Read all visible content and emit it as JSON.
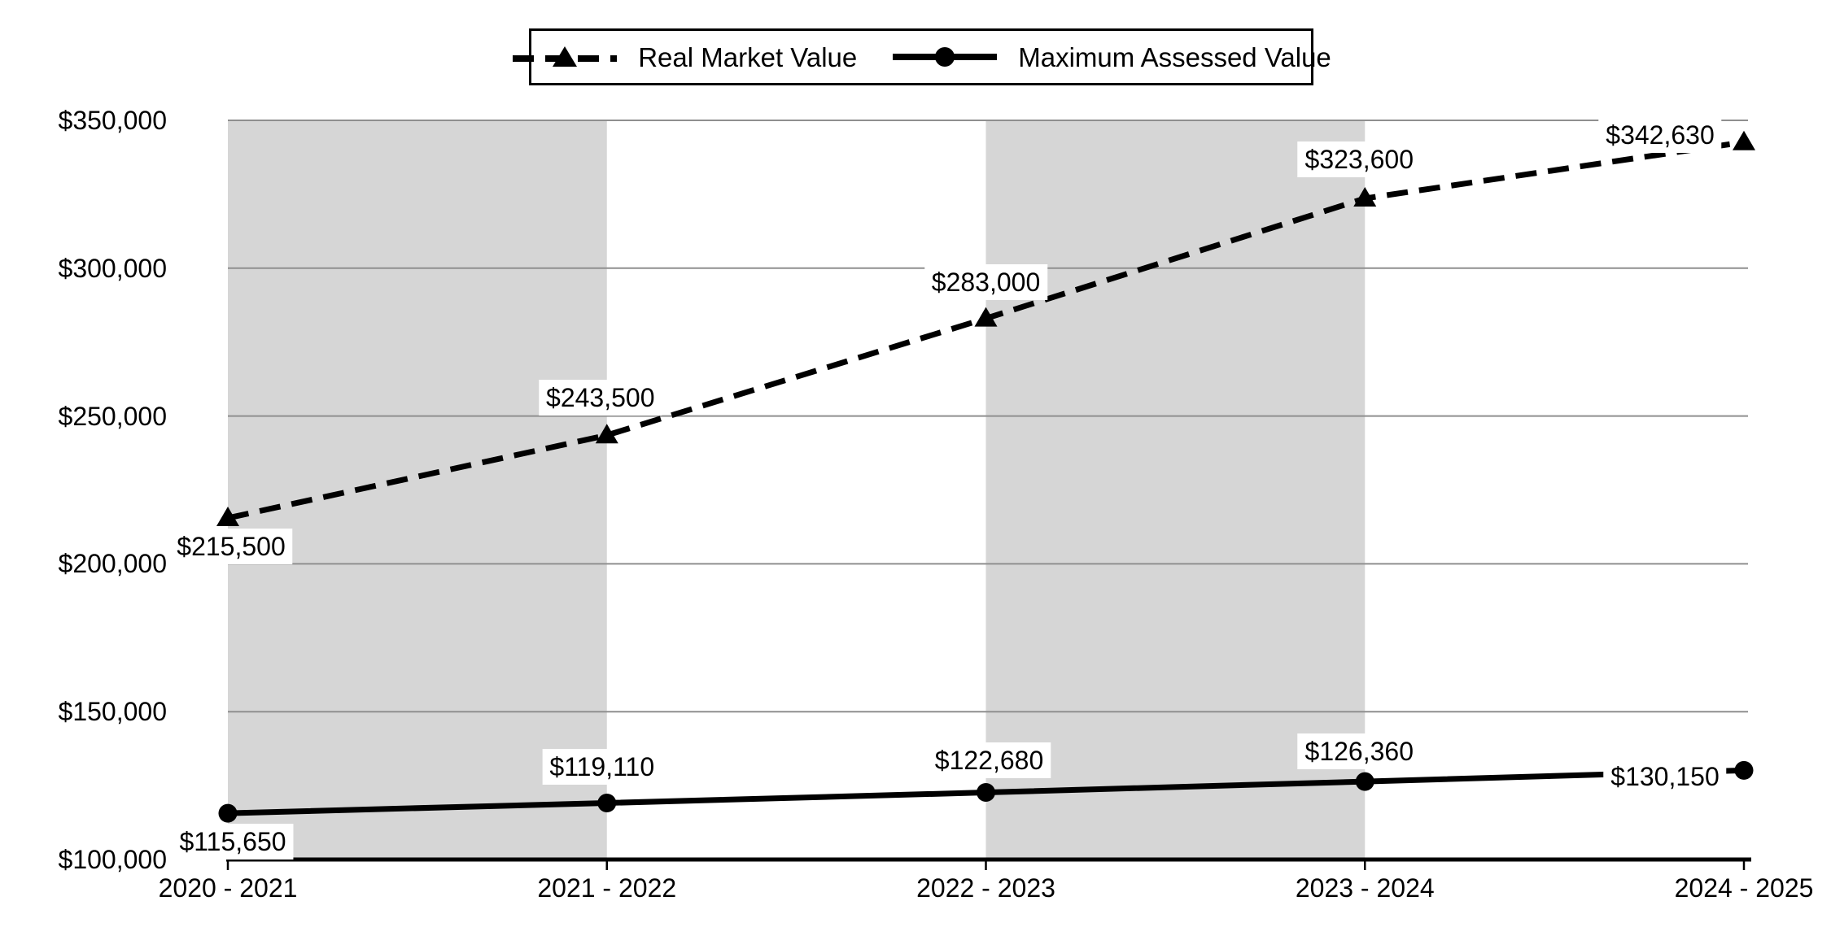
{
  "chart_data": {
    "type": "line",
    "title": "",
    "categories": [
      "2020 - 2021",
      "2021 - 2022",
      "2022 - 2023",
      "2023 - 2024",
      "2024 - 2025"
    ],
    "series": [
      {
        "name": "Real Market Value",
        "values": [
          215500,
          243500,
          283000,
          323600,
          342630
        ],
        "data_labels": [
          "$215,500",
          "$243,500",
          "$283,000",
          "$323,600",
          "$342,630"
        ],
        "line_style": "dashed",
        "marker": "triangle",
        "color": "#000000"
      },
      {
        "name": "Maximum Assessed Value",
        "values": [
          115650,
          119110,
          122680,
          126360,
          130150
        ],
        "data_labels": [
          "$115,650",
          "$119,110",
          "$122,680",
          "$126,360",
          "$130,150"
        ],
        "line_style": "solid",
        "marker": "circle",
        "color": "#000000"
      }
    ],
    "y_axis": {
      "min": 100000,
      "max": 350000,
      "tick_interval": 50000,
      "tick_values": [
        100000,
        150000,
        200000,
        250000,
        300000,
        350000
      ],
      "tick_labels": [
        "$100,000",
        "$150,000",
        "$200,000",
        "$250,000",
        "$300,000",
        "$350,000"
      ]
    },
    "legend": {
      "position": "top",
      "border": true,
      "entries": [
        "Real Market Value",
        "Maximum Assessed Value"
      ]
    },
    "plot_bands": {
      "color": "#d6d6d6",
      "category_spans": [
        [
          0,
          1
        ],
        [
          2,
          3
        ]
      ]
    },
    "grid": {
      "show": true,
      "color": "#8f8f8f"
    },
    "colors": {
      "background": "#ffffff",
      "axis": "#000000",
      "text": "#000000"
    }
  }
}
